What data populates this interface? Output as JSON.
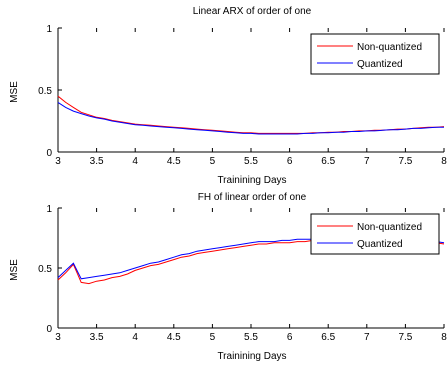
{
  "chart_data": [
    {
      "type": "line",
      "title": "Linear ARX of order of one",
      "xlabel": "Trainining Days",
      "ylabel": "MSE",
      "xlim": [
        3,
        8
      ],
      "ylim": [
        0,
        1
      ],
      "xticks": [
        "3",
        "3.5",
        "4",
        "4.5",
        "5",
        "5.5",
        "6",
        "6.5",
        "7",
        "7.5",
        "8"
      ],
      "yticks": [
        "0",
        "0.5",
        "1"
      ],
      "legend_position": "top-right",
      "grid": false,
      "series": [
        {
          "name": "Non-quantized",
          "color": "#ff0000",
          "x": [
            3.0,
            3.1,
            3.2,
            3.3,
            3.4,
            3.5,
            3.6,
            3.7,
            3.8,
            3.9,
            4.0,
            4.1,
            4.2,
            4.3,
            4.4,
            4.5,
            4.6,
            4.7,
            4.8,
            4.9,
            5.0,
            5.1,
            5.2,
            5.3,
            5.4,
            5.5,
            5.6,
            5.7,
            5.8,
            5.9,
            6.0,
            6.1,
            6.2,
            6.3,
            6.4,
            6.5,
            6.6,
            6.7,
            6.8,
            6.9,
            7.0,
            7.1,
            7.2,
            7.3,
            7.4,
            7.5,
            7.6,
            7.7,
            7.8,
            7.9,
            8.0
          ],
          "values": [
            0.45,
            0.4,
            0.36,
            0.32,
            0.3,
            0.28,
            0.27,
            0.255,
            0.245,
            0.235,
            0.225,
            0.22,
            0.215,
            0.21,
            0.205,
            0.2,
            0.195,
            0.19,
            0.185,
            0.18,
            0.175,
            0.17,
            0.165,
            0.16,
            0.155,
            0.155,
            0.15,
            0.15,
            0.15,
            0.15,
            0.15,
            0.15,
            0.15,
            0.155,
            0.155,
            0.16,
            0.16,
            0.165,
            0.165,
            0.17,
            0.17,
            0.175,
            0.175,
            0.18,
            0.185,
            0.185,
            0.19,
            0.195,
            0.2,
            0.2,
            0.205
          ]
        },
        {
          "name": "Quantized",
          "color": "#0000ff",
          "x": [
            3.0,
            3.1,
            3.2,
            3.3,
            3.4,
            3.5,
            3.6,
            3.7,
            3.8,
            3.9,
            4.0,
            4.1,
            4.2,
            4.3,
            4.4,
            4.5,
            4.6,
            4.7,
            4.8,
            4.9,
            5.0,
            5.1,
            5.2,
            5.3,
            5.4,
            5.5,
            5.6,
            5.7,
            5.8,
            5.9,
            6.0,
            6.1,
            6.2,
            6.3,
            6.4,
            6.5,
            6.6,
            6.7,
            6.8,
            6.9,
            7.0,
            7.1,
            7.2,
            7.3,
            7.4,
            7.5,
            7.6,
            7.7,
            7.8,
            7.9,
            8.0
          ],
          "values": [
            0.4,
            0.36,
            0.33,
            0.31,
            0.29,
            0.275,
            0.265,
            0.25,
            0.24,
            0.23,
            0.22,
            0.215,
            0.21,
            0.205,
            0.2,
            0.195,
            0.19,
            0.185,
            0.18,
            0.175,
            0.17,
            0.165,
            0.16,
            0.155,
            0.15,
            0.15,
            0.145,
            0.145,
            0.145,
            0.145,
            0.145,
            0.145,
            0.15,
            0.15,
            0.155,
            0.155,
            0.16,
            0.16,
            0.165,
            0.165,
            0.17,
            0.17,
            0.175,
            0.18,
            0.18,
            0.185,
            0.19,
            0.19,
            0.195,
            0.2,
            0.2
          ]
        }
      ]
    },
    {
      "type": "line",
      "title": "FH of linear order of one",
      "xlabel": "Trainining Days",
      "ylabel": "MSE",
      "xlim": [
        3,
        8
      ],
      "ylim": [
        0,
        1
      ],
      "xticks": [
        "3",
        "3.5",
        "4",
        "4.5",
        "5",
        "5.5",
        "6",
        "6.5",
        "7",
        "7.5",
        "8"
      ],
      "yticks": [
        "0",
        "0.5",
        "1"
      ],
      "legend_position": "top-right",
      "grid": false,
      "series": [
        {
          "name": "Non-quantized",
          "color": "#ff0000",
          "x": [
            3.0,
            3.1,
            3.2,
            3.3,
            3.4,
            3.5,
            3.6,
            3.7,
            3.8,
            3.9,
            4.0,
            4.1,
            4.2,
            4.3,
            4.4,
            4.5,
            4.6,
            4.7,
            4.8,
            4.9,
            5.0,
            5.1,
            5.2,
            5.3,
            5.4,
            5.5,
            5.6,
            5.7,
            5.8,
            5.9,
            6.0,
            6.1,
            6.2,
            6.3,
            6.4,
            6.5,
            6.6,
            6.7,
            6.8,
            6.9,
            7.0,
            7.1,
            7.2,
            7.3,
            7.4,
            7.5,
            7.6,
            7.7,
            7.8,
            7.9,
            8.0
          ],
          "values": [
            0.4,
            0.46,
            0.53,
            0.38,
            0.37,
            0.39,
            0.4,
            0.42,
            0.43,
            0.45,
            0.48,
            0.5,
            0.52,
            0.53,
            0.55,
            0.57,
            0.59,
            0.6,
            0.62,
            0.63,
            0.64,
            0.65,
            0.66,
            0.67,
            0.68,
            0.69,
            0.7,
            0.7,
            0.71,
            0.71,
            0.71,
            0.72,
            0.72,
            0.73,
            0.73,
            0.74,
            0.74,
            0.74,
            0.74,
            0.74,
            0.74,
            0.74,
            0.74,
            0.74,
            0.74,
            0.74,
            0.74,
            0.73,
            0.72,
            0.71,
            0.7
          ]
        },
        {
          "name": "Quantized",
          "color": "#0000ff",
          "x": [
            3.0,
            3.1,
            3.2,
            3.3,
            3.4,
            3.5,
            3.6,
            3.7,
            3.8,
            3.9,
            4.0,
            4.1,
            4.2,
            4.3,
            4.4,
            4.5,
            4.6,
            4.7,
            4.8,
            4.9,
            5.0,
            5.1,
            5.2,
            5.3,
            5.4,
            5.5,
            5.6,
            5.7,
            5.8,
            5.9,
            6.0,
            6.1,
            6.2,
            6.3,
            6.4,
            6.5,
            6.6,
            6.7,
            6.8,
            6.9,
            7.0,
            7.1,
            7.2,
            7.3,
            7.4,
            7.5,
            7.6,
            7.7,
            7.8,
            7.9,
            8.0
          ],
          "values": [
            0.42,
            0.48,
            0.54,
            0.41,
            0.42,
            0.43,
            0.44,
            0.45,
            0.46,
            0.48,
            0.5,
            0.52,
            0.54,
            0.55,
            0.57,
            0.59,
            0.61,
            0.62,
            0.64,
            0.65,
            0.66,
            0.67,
            0.68,
            0.69,
            0.7,
            0.71,
            0.72,
            0.72,
            0.72,
            0.73,
            0.73,
            0.74,
            0.74,
            0.74,
            0.75,
            0.75,
            0.76,
            0.76,
            0.76,
            0.76,
            0.76,
            0.76,
            0.76,
            0.76,
            0.76,
            0.76,
            0.75,
            0.74,
            0.73,
            0.72,
            0.71
          ]
        }
      ]
    }
  ]
}
